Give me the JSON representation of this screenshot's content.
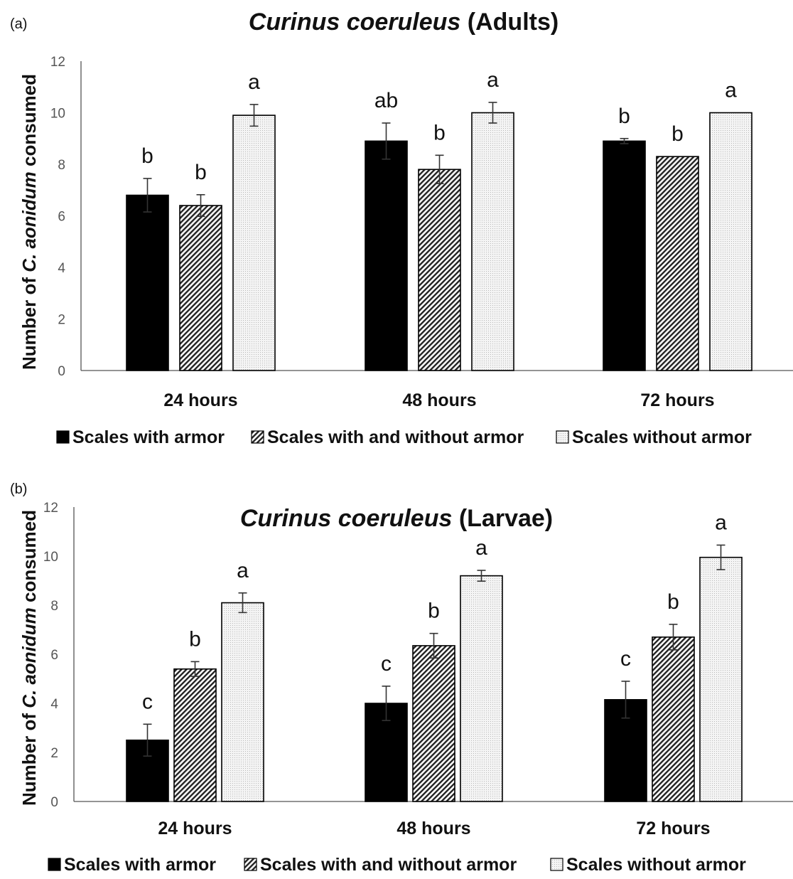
{
  "chart_data": [
    {
      "type": "bar",
      "panel_label": "(a)",
      "title_italic": "Curinus coeruleus",
      "title_rest": " (Adults)",
      "ylabel_prefix": "Number of ",
      "ylabel_italic": "C. aonidum",
      "ylabel_suffix": " consumed",
      "xlabel": "",
      "ylim": [
        0,
        12
      ],
      "yticks": [
        "0",
        "2",
        "4",
        "6",
        "8",
        "10",
        "12"
      ],
      "grid": false,
      "legend_position": "bottom",
      "categories": [
        "24 hours",
        "48 hours",
        "72 hours"
      ],
      "series": [
        {
          "name": "Scales with armor",
          "pattern": "solid-black",
          "values": [
            6.8,
            8.9,
            8.9
          ],
          "errors": [
            0.65,
            0.7,
            0.1
          ],
          "letters": [
            "b",
            "ab",
            "b"
          ]
        },
        {
          "name": "Scales with and without armor",
          "pattern": "diagonal-hatch",
          "values": [
            6.4,
            7.8,
            8.3
          ],
          "errors": [
            0.42,
            0.55,
            0.0
          ],
          "letters": [
            "b",
            "b",
            "b"
          ]
        },
        {
          "name": "Scales without armor",
          "pattern": "dotted-light",
          "values": [
            9.9,
            10.0,
            10.0
          ],
          "errors": [
            0.42,
            0.4,
            0.0
          ],
          "letters": [
            "a",
            "a",
            "a"
          ]
        }
      ]
    },
    {
      "type": "bar",
      "panel_label": "(b)",
      "title_italic": "Curinus coeruleus",
      "title_rest": " (Larvae)",
      "ylabel_prefix": "Number of ",
      "ylabel_italic": "C. aonidum",
      "ylabel_suffix": " consumed",
      "xlabel": "",
      "ylim": [
        0,
        12
      ],
      "yticks": [
        "0",
        "2",
        "4",
        "6",
        "8",
        "10",
        "12"
      ],
      "grid": false,
      "legend_position": "bottom",
      "categories": [
        "24 hours",
        "48 hours",
        "72 hours"
      ],
      "series": [
        {
          "name": "Scales with armor",
          "pattern": "solid-black",
          "values": [
            2.5,
            4.0,
            4.15
          ],
          "errors": [
            0.65,
            0.7,
            0.75
          ],
          "letters": [
            "c",
            "c",
            "c"
          ]
        },
        {
          "name": "Scales with and without armor",
          "pattern": "diagonal-hatch",
          "values": [
            5.4,
            6.35,
            6.7
          ],
          "errors": [
            0.3,
            0.5,
            0.52
          ],
          "letters": [
            "b",
            "b",
            "b"
          ]
        },
        {
          "name": "Scales without armor",
          "pattern": "dotted-light",
          "values": [
            8.1,
            9.2,
            9.95
          ],
          "errors": [
            0.4,
            0.22,
            0.5
          ],
          "letters": [
            "a",
            "a",
            "a"
          ]
        }
      ]
    }
  ]
}
